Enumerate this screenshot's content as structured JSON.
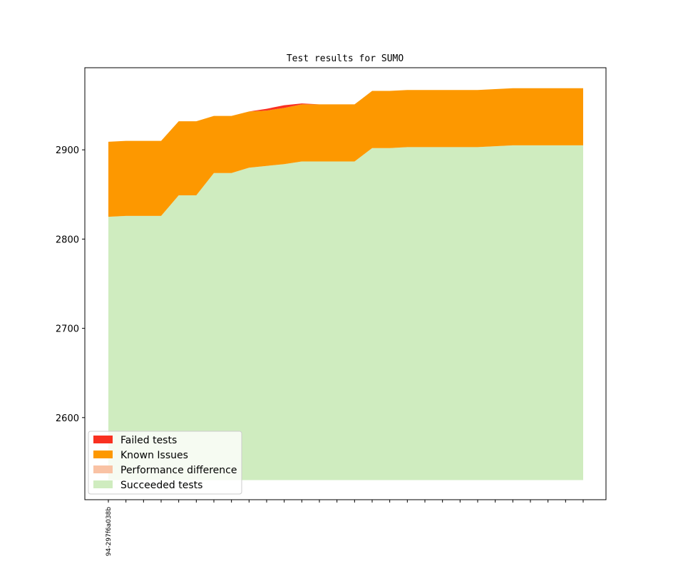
{
  "chart_data": {
    "type": "area",
    "title": "Test results for SUMO",
    "xlabel": "",
    "ylabel": "",
    "ylim": [
      2508,
      2992
    ],
    "yticks": [
      2600,
      2700,
      2800,
      2900
    ],
    "x_count": 28,
    "x_tick_labels": [
      "94-297f6a038b"
    ],
    "grid": false,
    "legend_placement": "lower-left",
    "series": [
      {
        "name": "Succeeded tests",
        "color": "#cfecbf",
        "values": [
          2825,
          2826,
          2826,
          2826,
          2849,
          2849,
          2874,
          2874,
          2880,
          2882,
          2884,
          2887,
          2887,
          2887,
          2887,
          2902,
          2902,
          2903,
          2903,
          2903,
          2903,
          2903,
          2904,
          2905,
          2905,
          2905,
          2905,
          2905
        ]
      },
      {
        "name": "Performance difference",
        "color": "#f9c2a4",
        "values": [
          0,
          0,
          0,
          0,
          0,
          0,
          0,
          0,
          0,
          0,
          0,
          0,
          0,
          0,
          0,
          0,
          0,
          0,
          0,
          0,
          0,
          0,
          0,
          0,
          0,
          0,
          0,
          0
        ]
      },
      {
        "name": "Known Issues",
        "color": "#fd9800",
        "values": [
          84,
          84,
          84,
          84,
          83,
          83,
          64,
          64,
          63,
          62,
          63,
          64,
          64,
          64,
          64,
          64,
          64,
          64,
          64,
          64,
          64,
          64,
          64,
          64,
          64,
          64,
          64,
          64
        ]
      },
      {
        "name": "Failed tests",
        "color": "#f93020",
        "values": [
          0,
          0,
          0,
          0,
          0,
          0,
          0,
          0,
          0,
          2,
          3,
          1,
          0,
          0,
          0,
          0,
          0,
          0,
          0,
          0,
          0,
          0,
          0,
          0,
          0,
          0,
          0,
          0
        ]
      }
    ],
    "legend": [
      {
        "label": "Failed tests",
        "color": "#f93020"
      },
      {
        "label": "Known Issues",
        "color": "#fd9800"
      },
      {
        "label": "Performance difference",
        "color": "#f9c2a4"
      },
      {
        "label": "Succeeded tests",
        "color": "#cfecbf"
      }
    ]
  }
}
